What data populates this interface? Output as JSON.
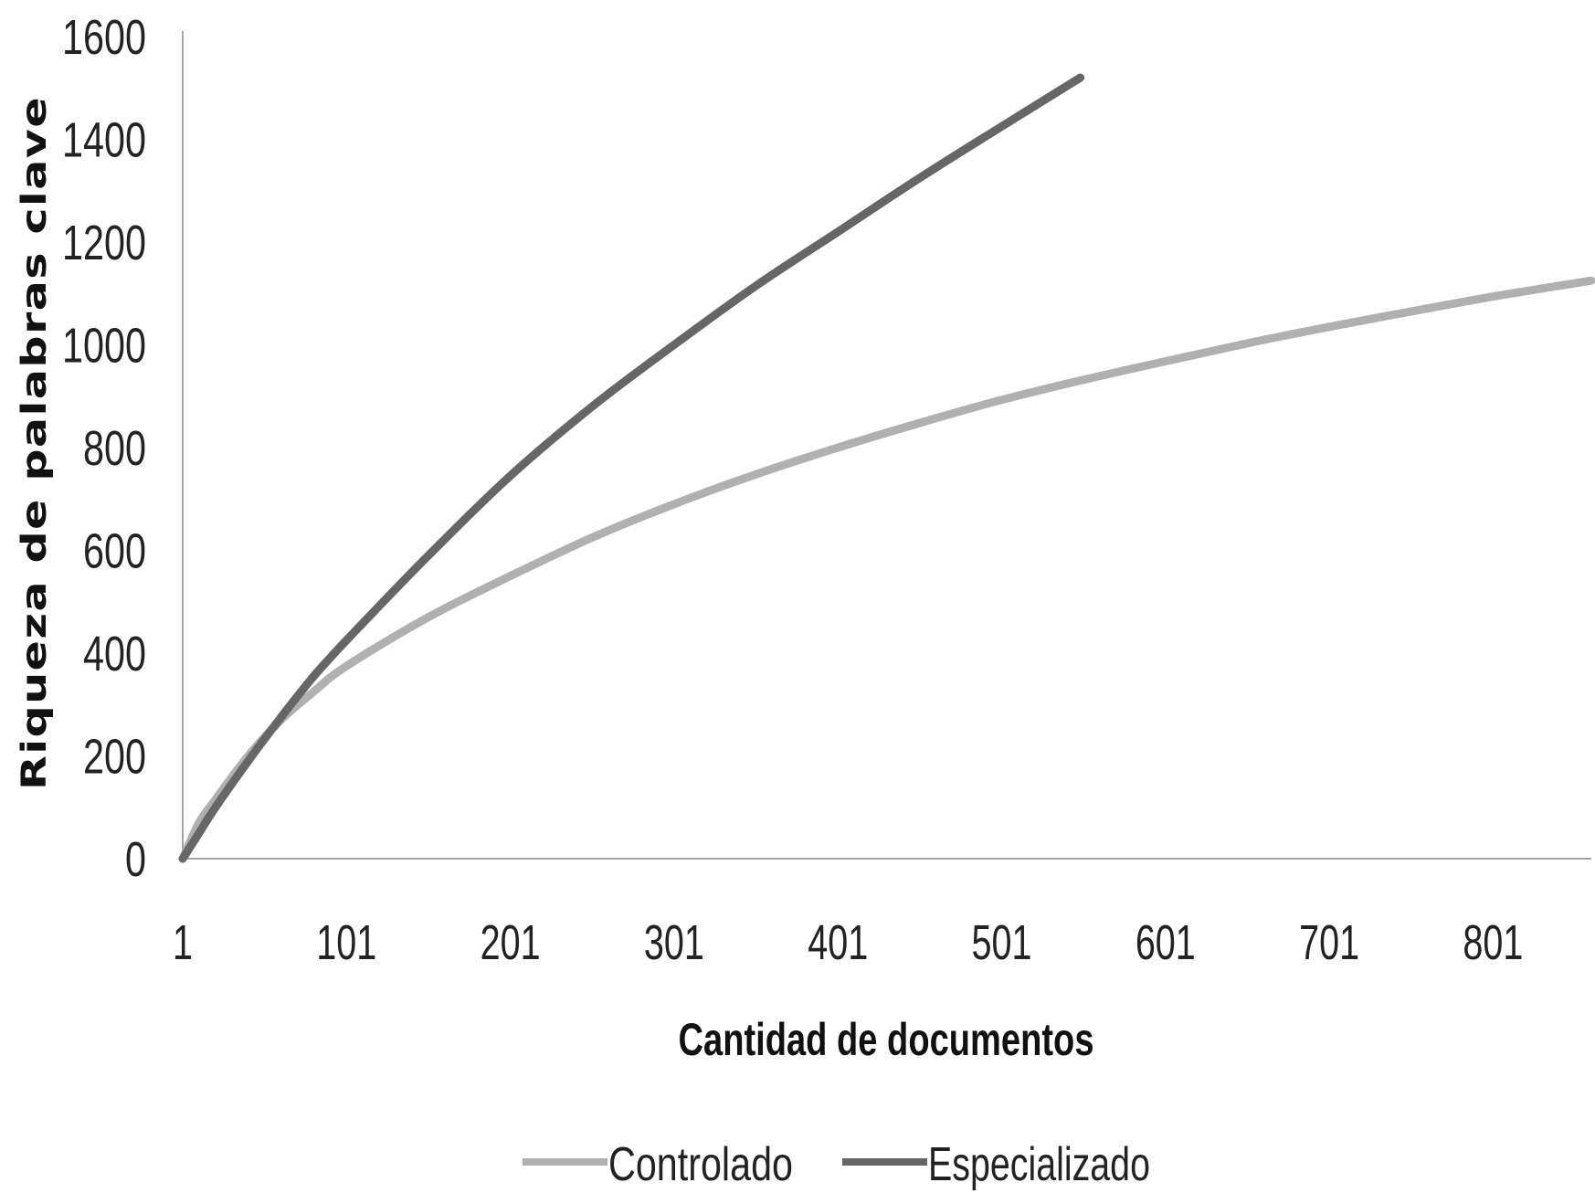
{
  "chart_data": {
    "type": "line",
    "xlabel": "Cantidad de documentos",
    "ylabel": "Riqueza de palabras clave",
    "xlim": [
      1,
      861
    ],
    "ylim": [
      0,
      1600
    ],
    "x_ticks": [
      1,
      101,
      201,
      301,
      401,
      501,
      601,
      701,
      801
    ],
    "y_ticks": [
      0,
      200,
      400,
      600,
      800,
      1000,
      1200,
      1400,
      1600
    ],
    "grid": false,
    "legend_position": "bottom",
    "series": [
      {
        "name": "Controlado",
        "color": "#b0b0b0",
        "x": [
          1,
          11,
          21,
          41,
          61,
          81,
          101,
          151,
          201,
          251,
          301,
          351,
          401,
          451,
          501,
          551,
          601,
          651,
          701,
          751,
          801,
          861
        ],
        "y": [
          0,
          70,
          115,
          200,
          270,
          325,
          375,
          470,
          550,
          625,
          690,
          748,
          800,
          848,
          893,
          932,
          968,
          1003,
          1035,
          1065,
          1094,
          1125
        ]
      },
      {
        "name": "Especializado",
        "color": "#666666",
        "x": [
          1,
          11,
          21,
          41,
          61,
          81,
          101,
          151,
          201,
          251,
          301,
          351,
          401,
          451,
          501,
          549
        ],
        "y": [
          0,
          50,
          100,
          190,
          275,
          355,
          425,
          590,
          745,
          880,
          1000,
          1115,
          1220,
          1325,
          1425,
          1520
        ]
      }
    ]
  }
}
